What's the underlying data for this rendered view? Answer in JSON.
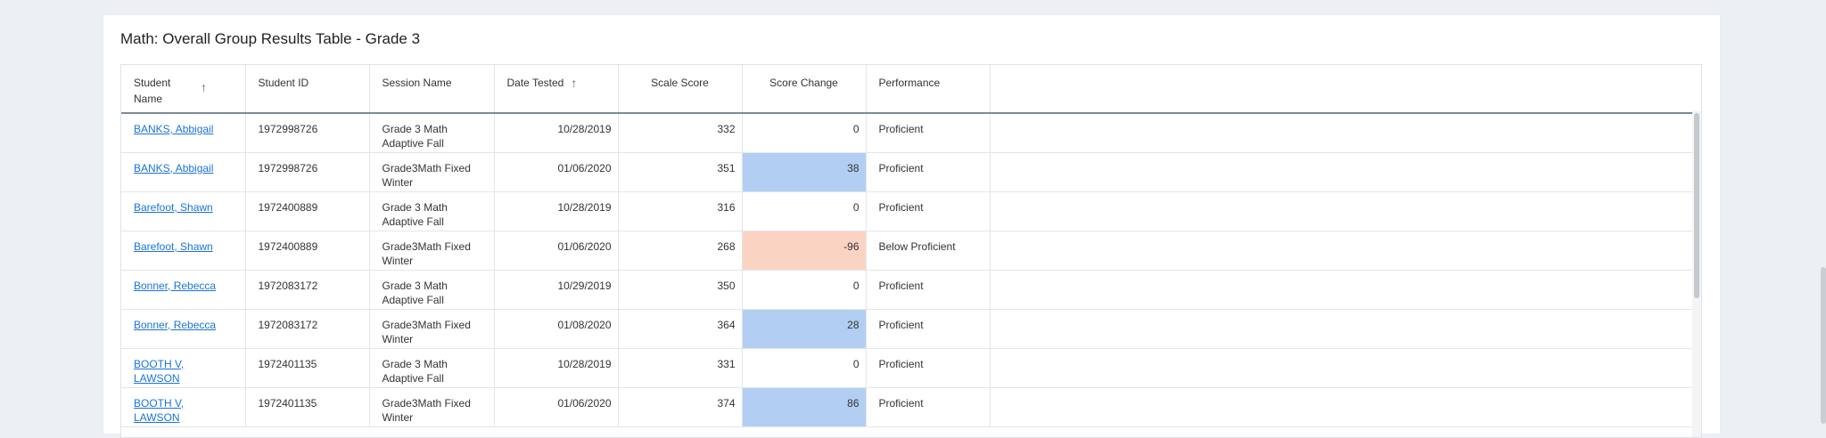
{
  "title": "Math: Overall Group Results Table - Grade 3",
  "colors": {
    "positive_change": "#b2cff3",
    "negative_change": "#fbd3c3",
    "link": "#1a73d9"
  },
  "columns": [
    {
      "label": "Student Name",
      "sort_icon": "arrow-up-icon"
    },
    {
      "label": "Student ID"
    },
    {
      "label": "Session Name"
    },
    {
      "label": "Date Tested",
      "sort_icon": "arrow-up-icon"
    },
    {
      "label": "Scale Score"
    },
    {
      "label": "Score Change"
    },
    {
      "label": "Performance"
    },
    {
      "label": ""
    }
  ],
  "rows": [
    {
      "name": "BANKS, Abbigail",
      "id": "1972998726",
      "session": "Grade 3 Math Adaptive Fall",
      "date": "10/28/2019",
      "scale": "332",
      "change": "0",
      "change_color": "",
      "performance": "Proficient"
    },
    {
      "name": "BANKS, Abbigail",
      "id": "1972998726",
      "session": "Grade3Math Fixed Winter",
      "date": "01/06/2020",
      "scale": "351",
      "change": "38",
      "change_color": "#b2cff3",
      "performance": "Proficient"
    },
    {
      "name": "Barefoot, Shawn",
      "id": "1972400889",
      "session": "Grade 3 Math Adaptive Fall",
      "date": "10/28/2019",
      "scale": "316",
      "change": "0",
      "change_color": "",
      "performance": "Proficient"
    },
    {
      "name": "Barefoot, Shawn",
      "id": "1972400889",
      "session": "Grade3Math Fixed Winter",
      "date": "01/06/2020",
      "scale": "268",
      "change": "-96",
      "change_color": "#fbd3c3",
      "performance": "Below Proficient"
    },
    {
      "name": "Bonner, Rebecca",
      "id": "1972083172",
      "session": "Grade 3 Math Adaptive Fall",
      "date": "10/29/2019",
      "scale": "350",
      "change": "0",
      "change_color": "",
      "performance": "Proficient"
    },
    {
      "name": "Bonner, Rebecca",
      "id": "1972083172",
      "session": "Grade3Math Fixed Winter",
      "date": "01/08/2020",
      "scale": "364",
      "change": "28",
      "change_color": "#b2cff3",
      "performance": "Proficient"
    },
    {
      "name": "BOOTH V, LAWSON",
      "id": "1972401135",
      "session": "Grade 3 Math Adaptive Fall",
      "date": "10/28/2019",
      "scale": "331",
      "change": "0",
      "change_color": "",
      "performance": "Proficient"
    },
    {
      "name": "BOOTH V, LAWSON",
      "id": "1972401135",
      "session": "Grade3Math Fixed Winter",
      "date": "01/06/2020",
      "scale": "374",
      "change": "86",
      "change_color": "#b2cff3",
      "performance": "Proficient"
    }
  ]
}
